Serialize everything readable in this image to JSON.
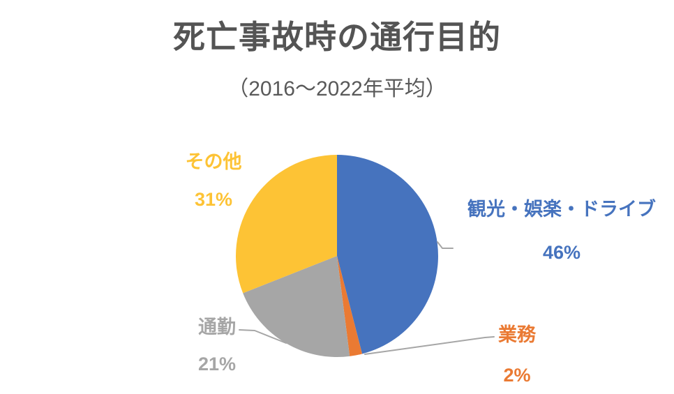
{
  "colors": {
    "title": "#545454",
    "subtitle": "#595959",
    "background": "#FFFFFF"
  },
  "chart_data": {
    "type": "pie",
    "title": "死亡事故時の通行目的",
    "subtitle": "（2016〜2022年平均）",
    "unit": "percent",
    "start_angle_deg": 0,
    "direction": "clockwise",
    "legend": "none",
    "labels_position": "outside",
    "leader_line_color": "#A6A6A6",
    "slices": [
      {
        "label": "観光・娯楽・ドライブ",
        "value": 46,
        "pct_label": "46%",
        "color": "#4673BE"
      },
      {
        "label": "業務",
        "value": 2,
        "pct_label": "2%",
        "color": "#EA7A33"
      },
      {
        "label": "通勤",
        "value": 21,
        "pct_label": "21%",
        "color": "#A6A6A6"
      },
      {
        "label": "その他",
        "value": 31,
        "pct_label": "31%",
        "color": "#FDC335"
      }
    ]
  }
}
